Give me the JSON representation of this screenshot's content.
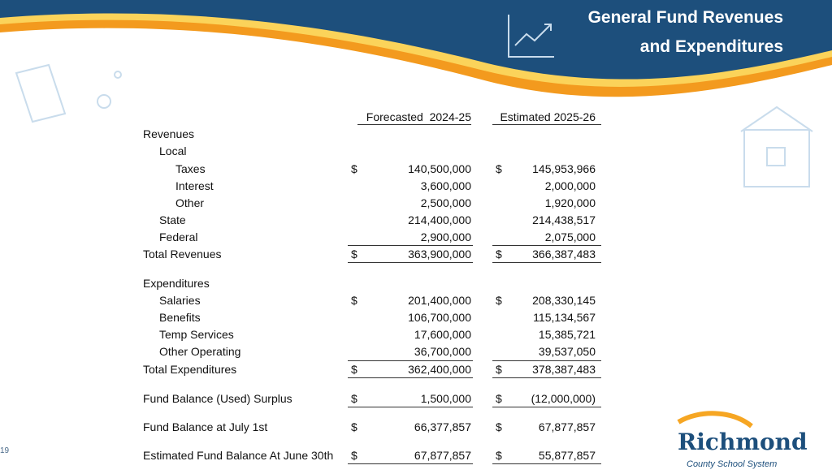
{
  "header": {
    "title_lines": [
      "General Fund Revenues",
      "and Expenditures"
    ]
  },
  "table": {
    "columns": [
      "Forecasted  2024-25",
      "Estimated 2025-26"
    ],
    "rows": [
      {
        "label": "Revenues"
      },
      {
        "label": "Local"
      },
      {
        "label": "Taxes",
        "forecast_sign": "$",
        "forecast": "140,500,000",
        "estimate_sign": "$",
        "estimate": "145,953,966"
      },
      {
        "label": "Interest",
        "forecast": "3,600,000",
        "estimate": "2,000,000"
      },
      {
        "label": "Other",
        "forecast": "2,500,000",
        "estimate": "1,920,000"
      },
      {
        "label": "State",
        "forecast": "214,400,000",
        "estimate": "214,438,517"
      },
      {
        "label": "Federal",
        "forecast": "2,900,000",
        "estimate": "2,075,000"
      },
      {
        "label": "Total Revenues",
        "forecast_sign": "$",
        "forecast": "363,900,000",
        "estimate_sign": "$",
        "estimate": "366,387,483"
      },
      {
        "label": "Expenditures"
      },
      {
        "label": "Salaries",
        "forecast_sign": "$",
        "forecast": "201,400,000",
        "estimate_sign": "$",
        "estimate": "208,330,145"
      },
      {
        "label": "Benefits",
        "forecast": "106,700,000",
        "estimate": "115,134,567"
      },
      {
        "label": "Temp Services",
        "forecast": "17,600,000",
        "estimate": "15,385,721"
      },
      {
        "label": "Other Operating",
        "forecast": "36,700,000",
        "estimate": "39,537,050"
      },
      {
        "label": "Total Expenditures",
        "forecast_sign": "$",
        "forecast": "362,400,000",
        "estimate_sign": "$",
        "estimate": "378,387,483"
      },
      {
        "label": "Fund Balance (Used) Surplus",
        "forecast_sign": "$",
        "forecast": "1,500,000",
        "estimate_sign": "$",
        "estimate": "(12,000,000)"
      },
      {
        "label": "Fund Balance at July 1st",
        "forecast_sign": "$",
        "forecast": "66,377,857",
        "estimate_sign": "$",
        "estimate": "67,877,857"
      },
      {
        "label": "Estimated Fund Balance At June 30th",
        "forecast_sign": "$",
        "forecast": "67,877,857",
        "estimate_sign": "$",
        "estimate": "55,877,857"
      }
    ]
  },
  "footer": {
    "page_number": "19",
    "logo_name": "Richmond",
    "logo_subtitle": "County School System"
  }
}
